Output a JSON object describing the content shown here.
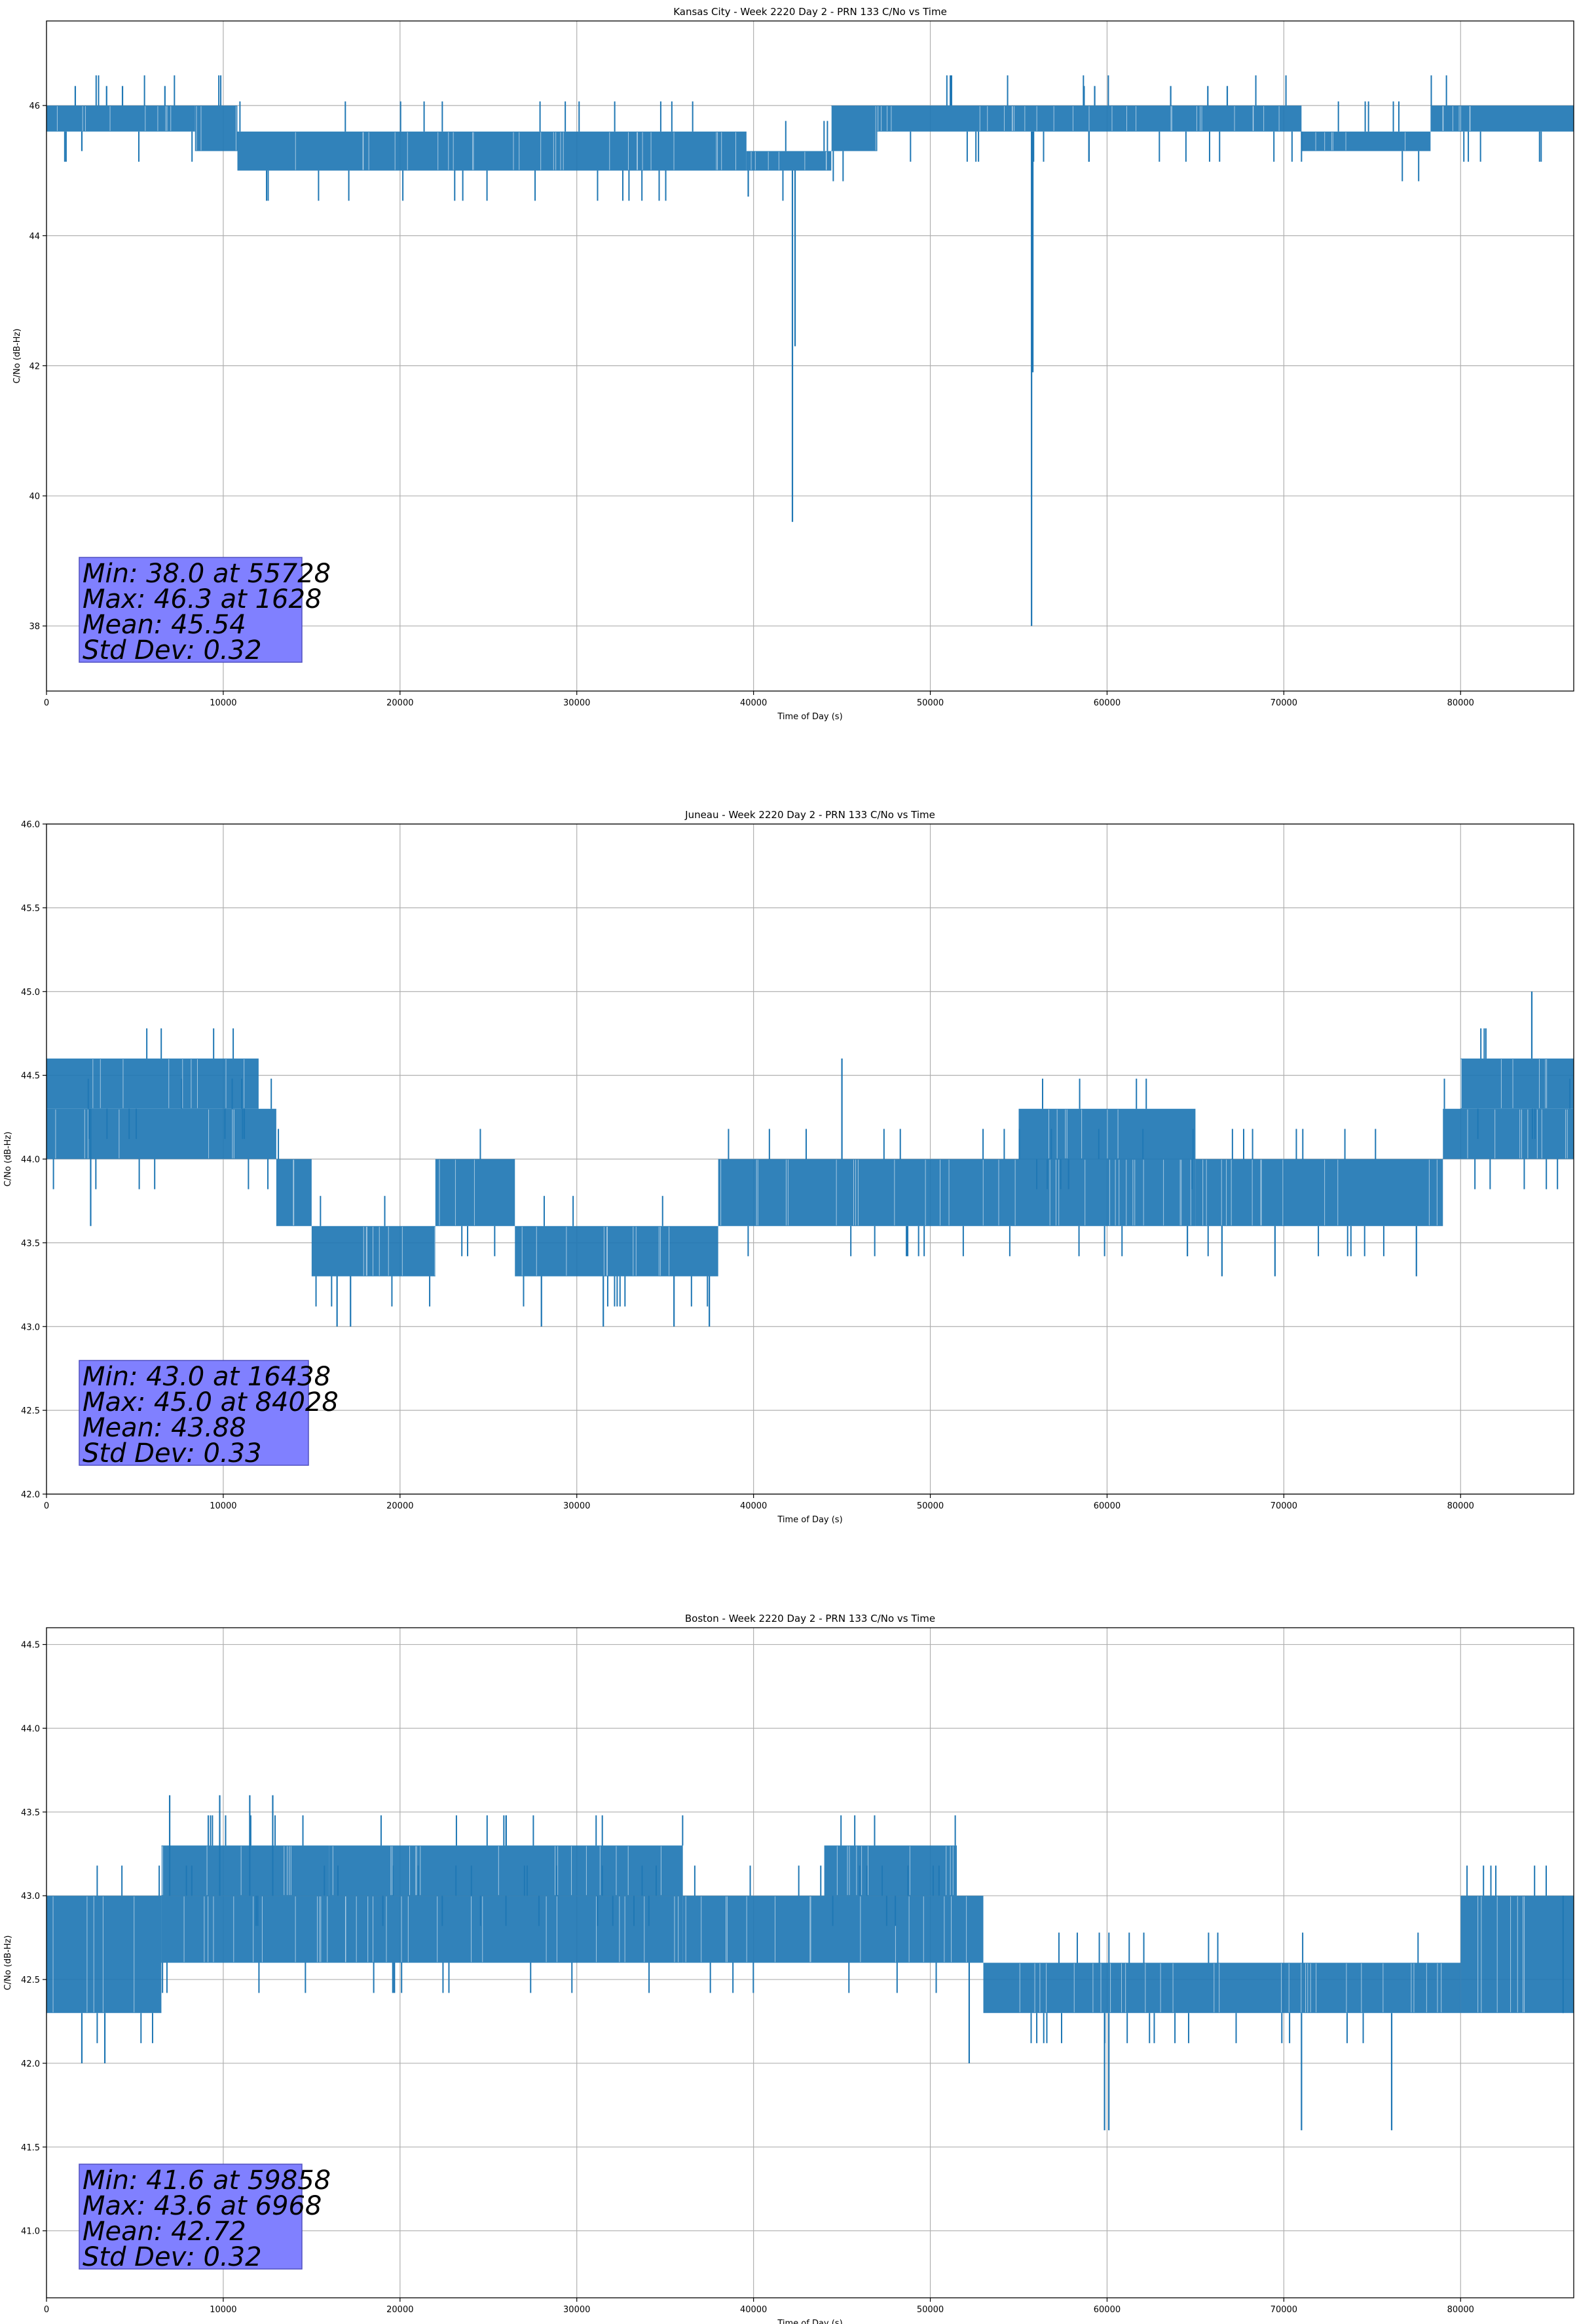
{
  "colors": {
    "series": "#1f77b4",
    "grid": "#b0b0b0",
    "stats_box_fill": "#8080ff",
    "stats_box_stroke": "#5050c0"
  },
  "chart_data": [
    {
      "type": "line",
      "title": "Kansas City - Week 2220 Day 2 - PRN 133 C/No vs Time",
      "xlabel": "Time of Day (s)",
      "ylabel": "C/No (dB-Hz)",
      "xlim": [
        0,
        86400
      ],
      "ylim": [
        37.0,
        47.3
      ],
      "grid": true,
      "xticks": [
        0,
        10000,
        20000,
        30000,
        40000,
        50000,
        60000,
        70000,
        80000
      ],
      "xtick_labels": [
        "0",
        "10000",
        "20000",
        "30000",
        "40000",
        "50000",
        "60000",
        "70000",
        "80000"
      ],
      "yticks": [
        38,
        40,
        42,
        44,
        46
      ],
      "ytick_labels": [
        "38",
        "40",
        "42",
        "44",
        "46"
      ],
      "series": [
        {
          "bands": [
            {
              "x0": 0,
              "x1": 8400,
              "lo": 45.6,
              "hi": 46.0
            },
            {
              "x0": 8400,
              "x1": 10800,
              "lo": 45.3,
              "hi": 46.0
            },
            {
              "x0": 10800,
              "x1": 39600,
              "lo": 45.0,
              "hi": 45.6
            },
            {
              "x0": 39600,
              "x1": 44400,
              "lo": 45.0,
              "hi": 45.3
            },
            {
              "x0": 44400,
              "x1": 47000,
              "lo": 45.3,
              "hi": 46.0
            },
            {
              "x0": 47000,
              "x1": 71000,
              "lo": 45.6,
              "hi": 46.0
            },
            {
              "x0": 71000,
              "x1": 78300,
              "lo": 45.3,
              "hi": 45.6
            },
            {
              "x0": 78300,
              "x1": 86400,
              "lo": 45.6,
              "hi": 46.0
            }
          ],
          "spikes": [
            {
              "x": 1628,
              "y": 46.3
            },
            {
              "x": 3400,
              "y": 46.3
            },
            {
              "x": 4300,
              "y": 46.3
            },
            {
              "x": 6700,
              "y": 46.3
            },
            {
              "x": 2000,
              "y": 45.3
            },
            {
              "x": 42200,
              "y": 39.6
            },
            {
              "x": 42350,
              "y": 42.3
            },
            {
              "x": 39700,
              "y": 44.6
            },
            {
              "x": 55728,
              "y": 38.0
            },
            {
              "x": 55800,
              "y": 41.9
            },
            {
              "x": 58700,
              "y": 46.3
            },
            {
              "x": 59300,
              "y": 46.3
            },
            {
              "x": 65700,
              "y": 46.3
            },
            {
              "x": 66800,
              "y": 46.3
            },
            {
              "x": 63600,
              "y": 46.3
            }
          ]
        }
      ],
      "stats_lines": [
        "Min: 38.0 at 55728",
        "Max: 46.3 at 1628",
        "Mean: 45.54",
        "Std Dev: 0.32"
      ]
    },
    {
      "type": "line",
      "title": "Juneau - Week 2220 Day 2 - PRN 133 C/No vs Time",
      "xlabel": "Time of Day (s)",
      "ylabel": "C/No (dB-Hz)",
      "xlim": [
        0,
        86400
      ],
      "ylim": [
        42.0,
        46.0
      ],
      "grid": true,
      "xticks": [
        0,
        10000,
        20000,
        30000,
        40000,
        50000,
        60000,
        70000,
        80000
      ],
      "xtick_labels": [
        "0",
        "10000",
        "20000",
        "30000",
        "40000",
        "50000",
        "60000",
        "70000",
        "80000"
      ],
      "yticks": [
        42.0,
        42.5,
        43.0,
        43.5,
        44.0,
        44.5,
        45.0,
        45.5,
        46.0
      ],
      "ytick_labels": [
        "42.0",
        "42.5",
        "43.0",
        "43.5",
        "44.0",
        "44.5",
        "45.0",
        "45.5",
        "46.0"
      ],
      "series": [
        {
          "bands": [
            {
              "x0": 0,
              "x1": 13000,
              "lo": 44.0,
              "hi": 44.3
            },
            {
              "x0": 0,
              "x1": 12000,
              "lo": 44.3,
              "hi": 44.6
            },
            {
              "x0": 13000,
              "x1": 15000,
              "lo": 43.6,
              "hi": 44.0
            },
            {
              "x0": 15000,
              "x1": 22000,
              "lo": 43.3,
              "hi": 43.6
            },
            {
              "x0": 22000,
              "x1": 26500,
              "lo": 43.6,
              "hi": 44.0
            },
            {
              "x0": 26500,
              "x1": 38000,
              "lo": 43.3,
              "hi": 43.6
            },
            {
              "x0": 38000,
              "x1": 65000,
              "lo": 43.6,
              "hi": 44.0
            },
            {
              "x0": 55000,
              "x1": 65000,
              "lo": 44.0,
              "hi": 44.3
            },
            {
              "x0": 65000,
              "x1": 79000,
              "lo": 43.6,
              "hi": 44.0
            },
            {
              "x0": 79000,
              "x1": 86400,
              "lo": 44.0,
              "hi": 44.3
            },
            {
              "x0": 80000,
              "x1": 86400,
              "lo": 44.3,
              "hi": 44.6
            }
          ],
          "spikes": [
            {
              "x": 2500,
              "y": 43.6
            },
            {
              "x": 16438,
              "y": 43.0
            },
            {
              "x": 17200,
              "y": 43.0
            },
            {
              "x": 28000,
              "y": 43.0
            },
            {
              "x": 31500,
              "y": 43.0
            },
            {
              "x": 35500,
              "y": 43.0
            },
            {
              "x": 37500,
              "y": 43.0
            },
            {
              "x": 45000,
              "y": 44.6
            },
            {
              "x": 66500,
              "y": 43.3
            },
            {
              "x": 69500,
              "y": 43.3
            },
            {
              "x": 77500,
              "y": 43.3
            },
            {
              "x": 84028,
              "y": 45.0
            }
          ]
        }
      ],
      "stats_lines": [
        "Min: 43.0 at 16438",
        "Max: 45.0 at 84028",
        "Mean: 43.88",
        "Std Dev: 0.33"
      ]
    },
    {
      "type": "line",
      "title": "Boston - Week 2220 Day 2 - PRN 133 C/No vs Time",
      "xlabel": "Time of Day (s)",
      "ylabel": "C/No (dB-Hz)",
      "xlim": [
        0,
        86400
      ],
      "ylim": [
        40.6,
        44.6
      ],
      "grid": true,
      "xticks": [
        0,
        10000,
        20000,
        30000,
        40000,
        50000,
        60000,
        70000,
        80000
      ],
      "xtick_labels": [
        "0",
        "10000",
        "20000",
        "30000",
        "40000",
        "50000",
        "60000",
        "70000",
        "80000"
      ],
      "yticks": [
        41.0,
        41.5,
        42.0,
        42.5,
        43.0,
        43.5,
        44.0,
        44.5
      ],
      "ytick_labels": [
        "41.0",
        "41.5",
        "42.0",
        "42.5",
        "43.0",
        "43.5",
        "44.0",
        "44.5"
      ],
      "series": [
        {
          "bands": [
            {
              "x0": 0,
              "x1": 6500,
              "lo": 42.3,
              "hi": 43.0
            },
            {
              "x0": 6500,
              "x1": 16000,
              "lo": 43.0,
              "hi": 43.3
            },
            {
              "x0": 6500,
              "x1": 36000,
              "lo": 42.6,
              "hi": 43.0
            },
            {
              "x0": 16000,
              "x1": 36000,
              "lo": 43.0,
              "hi": 43.3
            },
            {
              "x0": 36000,
              "x1": 53000,
              "lo": 42.6,
              "hi": 43.0
            },
            {
              "x0": 44000,
              "x1": 51500,
              "lo": 43.0,
              "hi": 43.3
            },
            {
              "x0": 53000,
              "x1": 80000,
              "lo": 42.3,
              "hi": 42.6
            },
            {
              "x0": 80000,
              "x1": 86400,
              "lo": 42.3,
              "hi": 43.0
            }
          ],
          "spikes": [
            {
              "x": 2000,
              "y": 42.0
            },
            {
              "x": 3300,
              "y": 42.0
            },
            {
              "x": 6968,
              "y": 43.6
            },
            {
              "x": 9800,
              "y": 43.6
            },
            {
              "x": 11500,
              "y": 43.6
            },
            {
              "x": 12800,
              "y": 43.6
            },
            {
              "x": 52200,
              "y": 42.0
            },
            {
              "x": 59858,
              "y": 41.6
            },
            {
              "x": 60100,
              "y": 41.6
            },
            {
              "x": 71000,
              "y": 41.6
            },
            {
              "x": 76100,
              "y": 41.6
            },
            {
              "x": 85800,
              "y": 43.0
            }
          ]
        }
      ],
      "stats_lines": [
        "Min: 41.6 at 59858",
        "Max: 43.6 at 6968",
        "Mean: 42.72",
        "Std Dev: 0.32"
      ]
    }
  ]
}
